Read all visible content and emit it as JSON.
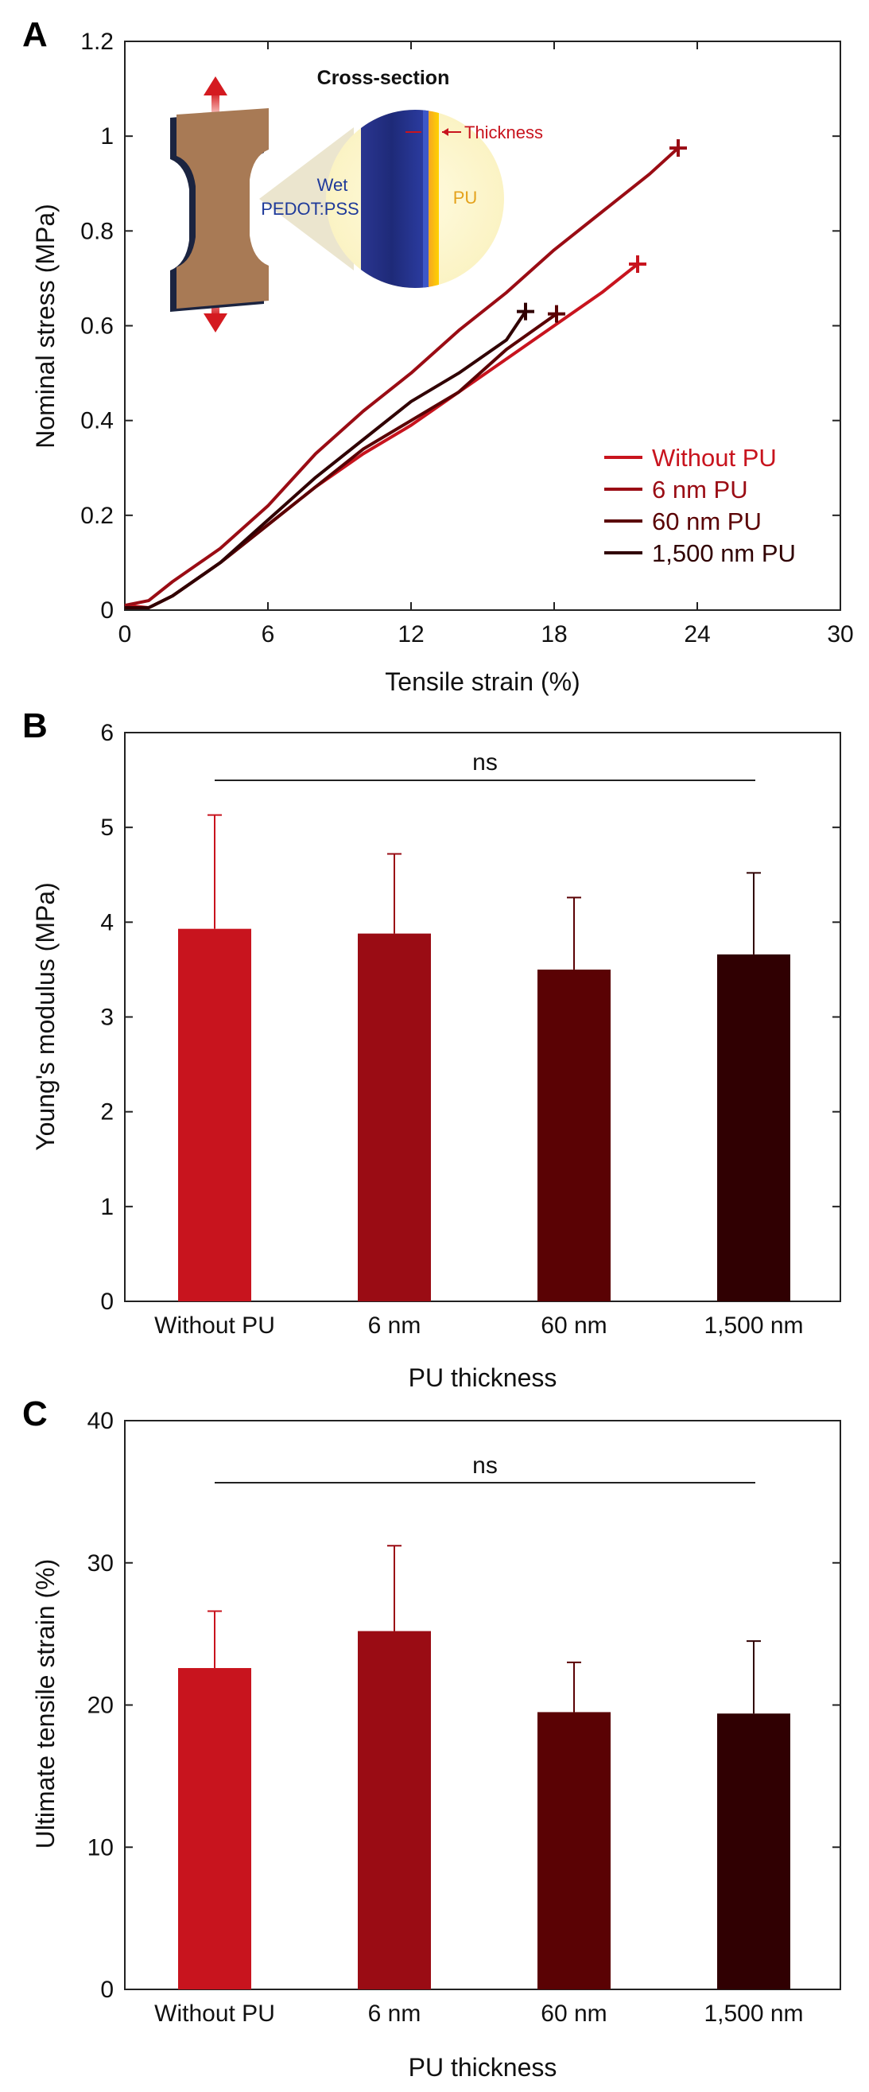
{
  "colors": {
    "without_pu": "#c8141e",
    "nm6": "#9a0c14",
    "nm60": "#5a0204",
    "nm1500": "#300002",
    "axis": "#222222"
  },
  "chart_data": [
    {
      "panel": "A",
      "type": "line",
      "xlabel": "Tensile strain (%)",
      "ylabel": "Nominal stress (MPa)",
      "xlim": [
        0,
        30
      ],
      "ylim": [
        0,
        1.2
      ],
      "xticks": [
        "0",
        "6",
        "12",
        "18",
        "24",
        "30"
      ],
      "yticks": [
        "0",
        "0.2",
        "0.4",
        "0.6",
        "0.8",
        "1",
        "1.2"
      ],
      "legend_position": "bottom-right",
      "series": [
        {
          "name": "Without PU",
          "color": "#c8141e",
          "x": [
            0,
            1,
            2,
            4,
            6,
            8,
            10,
            12,
            14,
            16,
            18,
            20,
            21.5
          ],
          "y": [
            0.01,
            0.005,
            0.03,
            0.1,
            0.18,
            0.26,
            0.33,
            0.39,
            0.46,
            0.53,
            0.6,
            0.67,
            0.73
          ],
          "end_marker": [
            21.5,
            0.73
          ]
        },
        {
          "name": "6 nm PU",
          "color": "#9a0c14",
          "x": [
            0,
            1,
            2,
            4,
            6,
            8,
            10,
            12,
            14,
            16,
            18,
            20,
            22,
            23.2
          ],
          "y": [
            0.01,
            0.02,
            0.06,
            0.13,
            0.22,
            0.33,
            0.42,
            0.5,
            0.59,
            0.67,
            0.76,
            0.84,
            0.92,
            0.975
          ],
          "end_marker": [
            23.2,
            0.975
          ]
        },
        {
          "name": "60 nm PU",
          "color": "#5a0204",
          "x": [
            0,
            1,
            2,
            4,
            6,
            8,
            10,
            12,
            14,
            16,
            18.1
          ],
          "y": [
            0.005,
            0.005,
            0.03,
            0.1,
            0.18,
            0.26,
            0.34,
            0.4,
            0.46,
            0.55,
            0.625
          ],
          "end_marker": [
            18.1,
            0.625
          ]
        },
        {
          "name": "1,500 nm PU",
          "color": "#300002",
          "x": [
            0,
            1,
            2,
            4,
            6,
            8,
            10,
            12,
            14,
            16,
            16.8
          ],
          "y": [
            0.005,
            0.005,
            0.03,
            0.1,
            0.19,
            0.28,
            0.36,
            0.44,
            0.5,
            0.57,
            0.63
          ],
          "end_marker": [
            16.8,
            0.63
          ]
        }
      ],
      "inset": {
        "title": "Cross-section",
        "wet_label": "Wet",
        "pedot_label": "PEDOT:PSS",
        "pu_label": "PU",
        "thickness_label": "Thickness"
      }
    },
    {
      "panel": "B",
      "type": "bar",
      "xlabel": "PU thickness",
      "ylabel": "Young's modulus (MPa)",
      "ylim": [
        0,
        6
      ],
      "yticks": [
        "0",
        "1",
        "2",
        "3",
        "4",
        "5",
        "6"
      ],
      "categories": [
        "Without PU",
        "6 nm",
        "60 nm",
        "1,500 nm"
      ],
      "values": [
        3.93,
        3.88,
        3.5,
        3.66
      ],
      "errors": [
        1.2,
        0.84,
        0.76,
        0.86
      ],
      "colors": [
        "#c8141e",
        "#9a0c14",
        "#5a0204",
        "#300002"
      ],
      "significance": "ns"
    },
    {
      "panel": "C",
      "type": "bar",
      "xlabel": "PU thickness",
      "ylabel": "Ultimate tensile strain (%)",
      "ylim": [
        0,
        40
      ],
      "yticks": [
        "0",
        "10",
        "20",
        "30",
        "40"
      ],
      "categories": [
        "Without PU",
        "6 nm",
        "60 nm",
        "1,500 nm"
      ],
      "values": [
        22.6,
        25.2,
        19.5,
        19.4
      ],
      "errors": [
        4.0,
        6.0,
        3.5,
        5.1
      ],
      "colors": [
        "#c8141e",
        "#9a0c14",
        "#5a0204",
        "#300002"
      ],
      "significance": "ns"
    }
  ]
}
